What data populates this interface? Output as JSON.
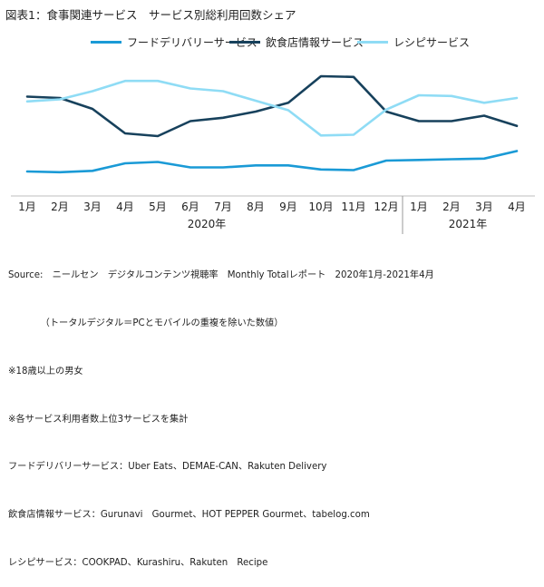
{
  "title": "図表1：食事関連サービス　サービス別総利用回数シェア",
  "chart_data": {
    "type": "line",
    "title": "図表1：食事関連サービス　サービス別総利用回数シェア",
    "categories": [
      "1月",
      "2月",
      "3月",
      "4月",
      "5月",
      "6月",
      "7月",
      "8月",
      "9月",
      "10月",
      "11月",
      "12月",
      "1月",
      "2月",
      "3月",
      "4月"
    ],
    "year_labels": [
      {
        "label": "2020年",
        "from": 0,
        "to": 11
      },
      {
        "label": "2021年",
        "from": 12,
        "to": 15
      }
    ],
    "year_divider_after": 11,
    "xlabel": "",
    "ylabel": "",
    "ylim": [
      0,
      100
    ],
    "grid": false,
    "legend_position": "top",
    "series": [
      {
        "name": "フードデリバリーサービス",
        "color": "#1a9ad6",
        "values": [
          14,
          13.5,
          14.5,
          20,
          21,
          17,
          17,
          18.5,
          18.5,
          15.5,
          15,
          22,
          22.5,
          23,
          23.5,
          29
        ]
      },
      {
        "name": "飲食店情報サービス",
        "color": "#17415c",
        "values": [
          69,
          68,
          60,
          42,
          40,
          51,
          53.5,
          58,
          64.5,
          84,
          83.5,
          58,
          51,
          51,
          55,
          47.5
        ]
      },
      {
        "name": "レシピサービス",
        "color": "#8fdcf5",
        "values": [
          65.5,
          67,
          73,
          80.5,
          80.5,
          75,
          73,
          66,
          59,
          40.5,
          41,
          59.5,
          70,
          69.5,
          64.5,
          68
        ]
      }
    ]
  },
  "notes": [
    "Source:　ニールセン　デジタルコンテンツ視聴率　Monthly Totalレポート　2020年1月-2021年4月",
    "　　　　（トータルデジタル＝PCとモバイルの重複を除いた数値）",
    "※18歳以上の男女",
    "※各サービス利用者数上位3サービスを集計",
    "フードデリバリーサービス：Uber Eats、DEMAE-CAN、Rakuten Delivery",
    "飲食店情報サービス：Gurunavi　Gourmet、HOT PEPPER Gourmet、tabelog.com",
    "レシピサービス：COOKPAD、Kurashiru、Rakuten　Recipe"
  ]
}
